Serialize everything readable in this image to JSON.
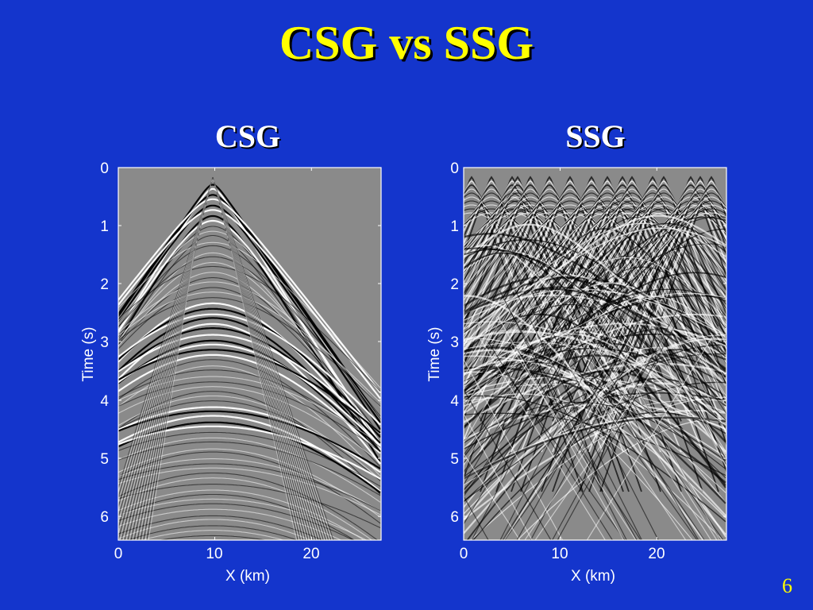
{
  "slide": {
    "title": "CSG vs SSG",
    "page_number": "6",
    "background_color": "#1435cc",
    "title_color": "#ffff00"
  },
  "panels": [
    {
      "title": "CSG",
      "xlabel": "X (km)",
      "ylabel": "Time (s)",
      "xticks": [
        "0",
        "10",
        "20"
      ],
      "yticks": [
        "0",
        "1",
        "2",
        "3",
        "4",
        "5",
        "6"
      ],
      "image": "common shot gather seismic section (single source at X≈10 km)"
    },
    {
      "title": "SSG",
      "xlabel": "X (km)",
      "ylabel": "Time (s)",
      "xticks": [
        "0",
        "10",
        "20"
      ],
      "yticks": [
        "0",
        "1",
        "2",
        "3",
        "4",
        "5",
        "6"
      ],
      "image": "supergather seismic section (many simultaneous sources)"
    }
  ]
}
